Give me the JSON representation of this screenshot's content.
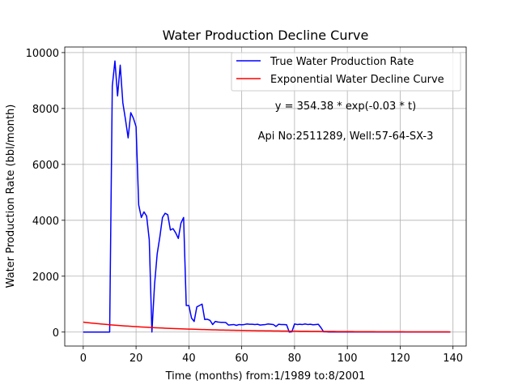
{
  "chart_data": {
    "type": "line",
    "title": "Water Production Decline Curve",
    "xlabel": "Time (months) from:1/1989 to:8/2001",
    "ylabel": "Water Production Rate (bbl/month)",
    "xlim": [
      -7,
      145
    ],
    "ylim": [
      -500,
      10200
    ],
    "xticks": [
      0,
      20,
      40,
      60,
      80,
      100,
      120,
      140
    ],
    "yticks": [
      0,
      2000,
      4000,
      6000,
      8000,
      10000
    ],
    "grid": true,
    "legend_position": "top-right",
    "annotations": [
      "y = 354.38 * exp(-0.03 * t)",
      "Api No:2511289, Well:57-64-SX-3"
    ],
    "series": [
      {
        "name": "True Water Production Rate",
        "color": "#0000ff",
        "points": [
          [
            0,
            0
          ],
          [
            1,
            0
          ],
          [
            2,
            0
          ],
          [
            3,
            0
          ],
          [
            4,
            0
          ],
          [
            5,
            0
          ],
          [
            6,
            0
          ],
          [
            7,
            0
          ],
          [
            8,
            0
          ],
          [
            9,
            0
          ],
          [
            10,
            0
          ],
          [
            11,
            8800
          ],
          [
            12,
            9700
          ],
          [
            13,
            8450
          ],
          [
            14,
            9550
          ],
          [
            15,
            8200
          ],
          [
            16,
            7600
          ],
          [
            17,
            6950
          ],
          [
            18,
            7850
          ],
          [
            19,
            7650
          ],
          [
            20,
            7350
          ],
          [
            21,
            4550
          ],
          [
            22,
            4100
          ],
          [
            23,
            4300
          ],
          [
            24,
            4150
          ],
          [
            25,
            3300
          ],
          [
            26,
            0
          ],
          [
            27,
            1700
          ],
          [
            28,
            2800
          ],
          [
            29,
            3400
          ],
          [
            30,
            4100
          ],
          [
            31,
            4250
          ],
          [
            32,
            4200
          ],
          [
            33,
            3650
          ],
          [
            34,
            3700
          ],
          [
            35,
            3550
          ],
          [
            36,
            3350
          ],
          [
            37,
            3900
          ],
          [
            38,
            4100
          ],
          [
            39,
            950
          ],
          [
            40,
            950
          ],
          [
            41,
            500
          ],
          [
            42,
            380
          ],
          [
            43,
            900
          ],
          [
            44,
            950
          ],
          [
            45,
            1000
          ],
          [
            46,
            450
          ],
          [
            47,
            460
          ],
          [
            48,
            420
          ],
          [
            49,
            270
          ],
          [
            50,
            380
          ],
          [
            51,
            360
          ],
          [
            52,
            350
          ],
          [
            53,
            350
          ],
          [
            54,
            340
          ],
          [
            55,
            250
          ],
          [
            56,
            260
          ],
          [
            57,
            270
          ],
          [
            58,
            240
          ],
          [
            59,
            270
          ],
          [
            60,
            260
          ],
          [
            61,
            270
          ],
          [
            62,
            290
          ],
          [
            63,
            280
          ],
          [
            64,
            280
          ],
          [
            65,
            270
          ],
          [
            66,
            280
          ],
          [
            67,
            250
          ],
          [
            68,
            260
          ],
          [
            69,
            270
          ],
          [
            70,
            290
          ],
          [
            71,
            280
          ],
          [
            72,
            270
          ],
          [
            73,
            200
          ],
          [
            74,
            280
          ],
          [
            75,
            270
          ],
          [
            76,
            270
          ],
          [
            77,
            260
          ],
          [
            78,
            0
          ],
          [
            79,
            10
          ],
          [
            80,
            290
          ],
          [
            81,
            270
          ],
          [
            82,
            280
          ],
          [
            83,
            270
          ],
          [
            84,
            290
          ],
          [
            85,
            270
          ],
          [
            86,
            280
          ],
          [
            87,
            260
          ],
          [
            88,
            270
          ],
          [
            89,
            280
          ],
          [
            90,
            160
          ],
          [
            91,
            10
          ],
          [
            92,
            10
          ],
          [
            93,
            5
          ],
          [
            94,
            5
          ],
          [
            95,
            5
          ],
          [
            100,
            5
          ],
          [
            110,
            5
          ],
          [
            120,
            5
          ],
          [
            130,
            5
          ],
          [
            139,
            5
          ]
        ]
      },
      {
        "name": "Exponential Water Decline Curve",
        "color": "#ff0000",
        "equation": {
          "a": 354.38,
          "b": -0.03
        },
        "x_range": [
          0,
          139
        ]
      }
    ]
  }
}
